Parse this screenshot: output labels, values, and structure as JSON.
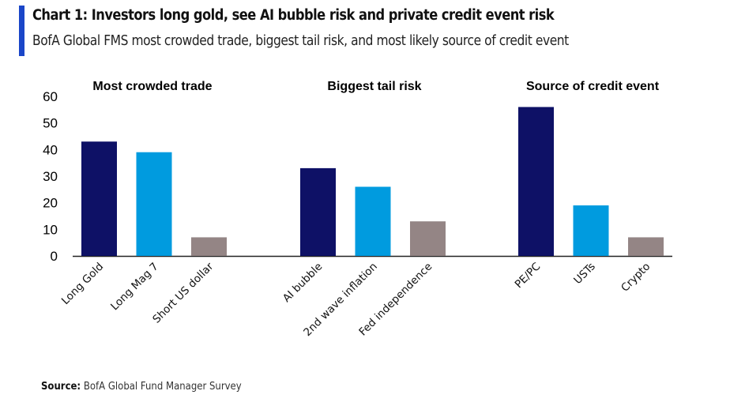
{
  "header": {
    "title": "Chart 1: Investors long gold, see AI bubble risk and private credit event risk",
    "subtitle": "BofA Global FMS most crowded trade, biggest tail risk, and most likely source of credit event",
    "accent_color": "#1A46C8"
  },
  "footer": {
    "source_label": "Source:",
    "source_text": " BofA Global Fund Manager Survey"
  },
  "chart_data": {
    "type": "bar",
    "title": "Chart 1: Investors long gold, see AI bubble risk and private credit event risk",
    "subtitle": "BofA Global FMS most crowded trade, biggest tail risk, and most likely source of credit event",
    "xlabel": "",
    "ylabel": "",
    "ylim": [
      0,
      60
    ],
    "yticks": [
      "0",
      "10",
      "20",
      "30",
      "40",
      "50",
      "60"
    ],
    "grid": false,
    "legend": "none",
    "colors": [
      "#0E1166",
      "#009BDF",
      "#948585"
    ],
    "groups": [
      {
        "name": "Most crowded trade",
        "categories": [
          "Long Gold",
          "Long Mag 7",
          "Short US dollar"
        ],
        "values": [
          43,
          39,
          7
        ]
      },
      {
        "name": "Biggest tail risk",
        "categories": [
          "AI bubble",
          "2nd wave inflation",
          "Fed independence"
        ],
        "values": [
          33,
          26,
          13
        ]
      },
      {
        "name": "Source of credit event",
        "categories": [
          "PE/PC",
          "USTs",
          "Crypto"
        ],
        "values": [
          56,
          19,
          7
        ]
      }
    ]
  }
}
